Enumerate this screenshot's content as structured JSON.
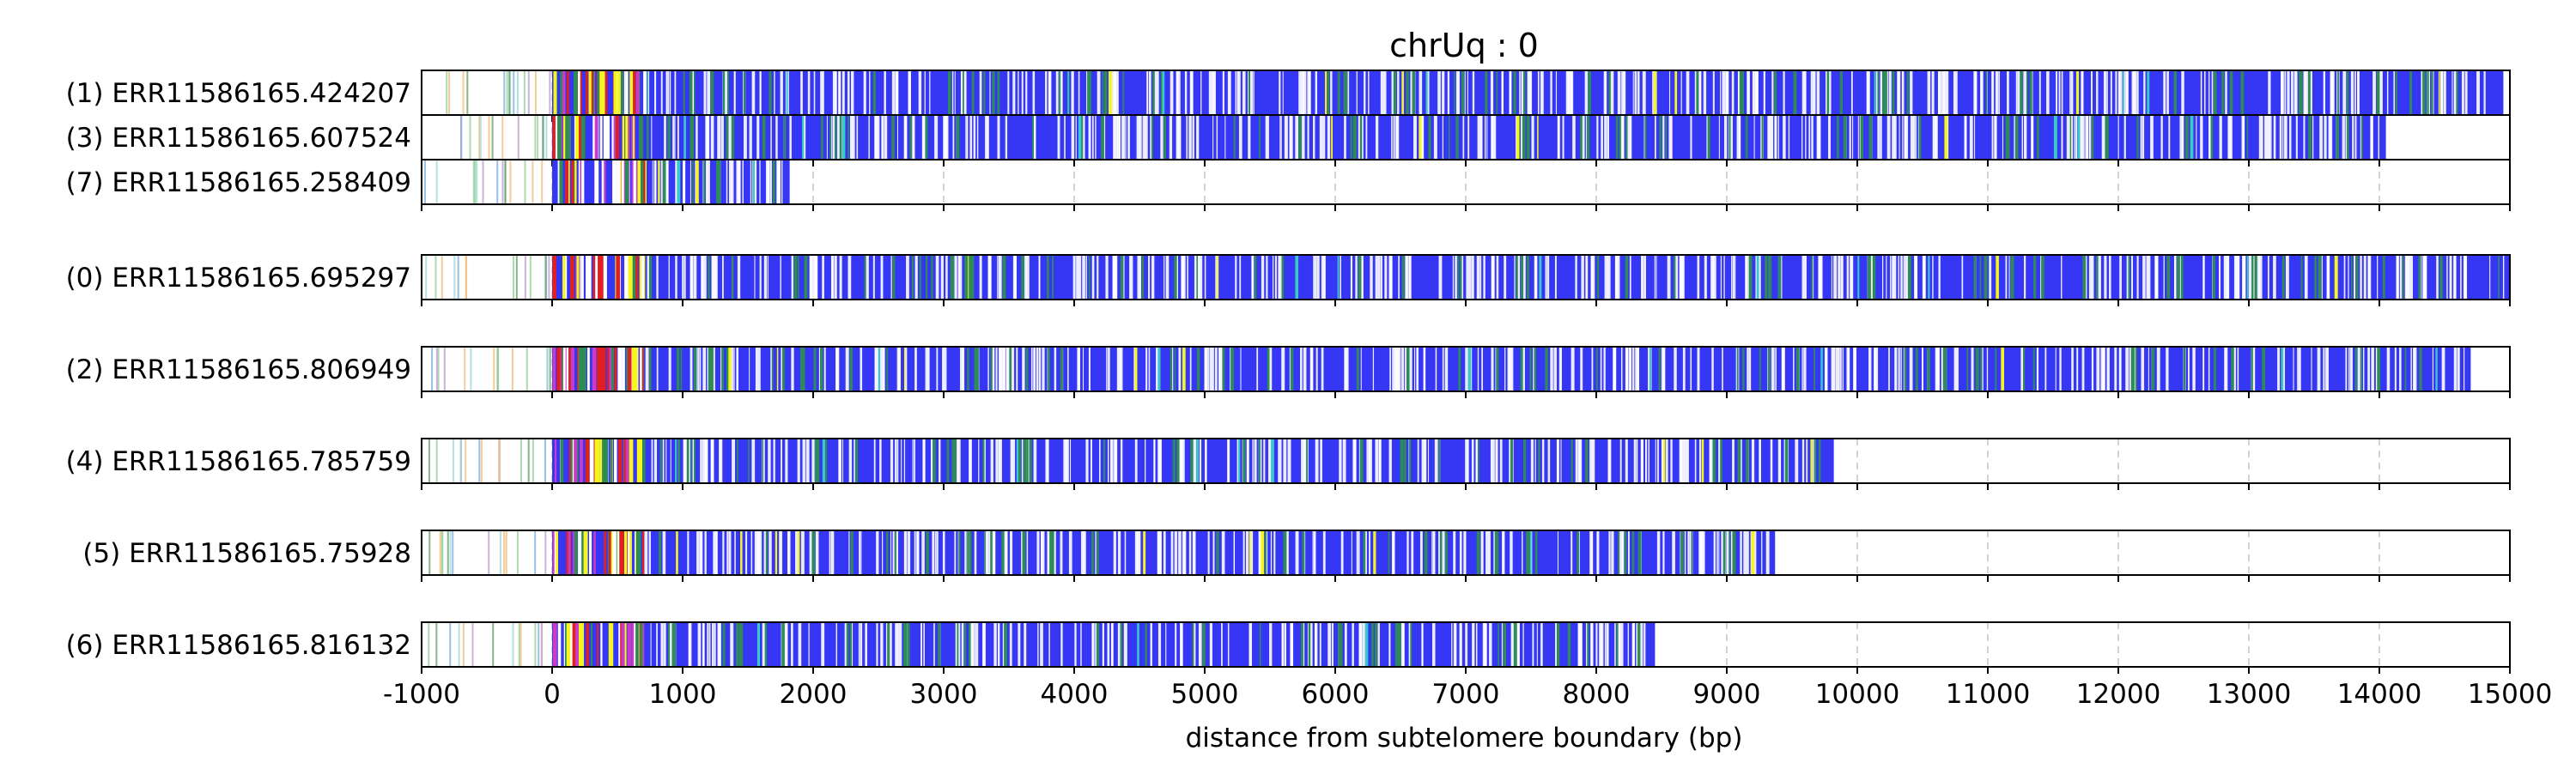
{
  "chart_data": {
    "type": "track",
    "title": "chrUq : 0",
    "xlabel": "distance from subtelomere boundary (bp)",
    "xlim": [
      -1000,
      15000
    ],
    "xticks": [
      -1000,
      0,
      1000,
      2000,
      3000,
      4000,
      5000,
      6000,
      7000,
      8000,
      9000,
      10000,
      11000,
      12000,
      13000,
      14000,
      15000
    ],
    "grid": "vertical-dashed",
    "colors": {
      "repeat": "#3636f5",
      "gap": "#ffffff",
      "variant_green": "#2e8b57",
      "variant_yellow": "#f5f524",
      "variant_magenta": "#c83cc8",
      "variant_red": "#e02020",
      "variant_teal": "#3cc8c8",
      "subtelomere_line": "#6aa06a"
    },
    "reads": [
      {
        "label": "(1) ERR11586165.424207",
        "end": 14950,
        "group": 0
      },
      {
        "label": "(3) ERR11586165.607524",
        "end": 14050,
        "group": 0
      },
      {
        "label": "(7) ERR11586165.258409",
        "end": 1820,
        "group": 0
      },
      {
        "label": "(0) ERR11586165.695297",
        "end": 15000,
        "group": 1
      },
      {
        "label": "(2) ERR11586165.806949",
        "end": 14700,
        "group": 2
      },
      {
        "label": "(4) ERR11586165.785759",
        "end": 9820,
        "group": 3
      },
      {
        "label": "(5) ERR11586165.75928",
        "end": 9370,
        "group": 4
      },
      {
        "label": "(6) ERR11586165.816132",
        "end": 8450,
        "group": 5
      }
    ]
  }
}
